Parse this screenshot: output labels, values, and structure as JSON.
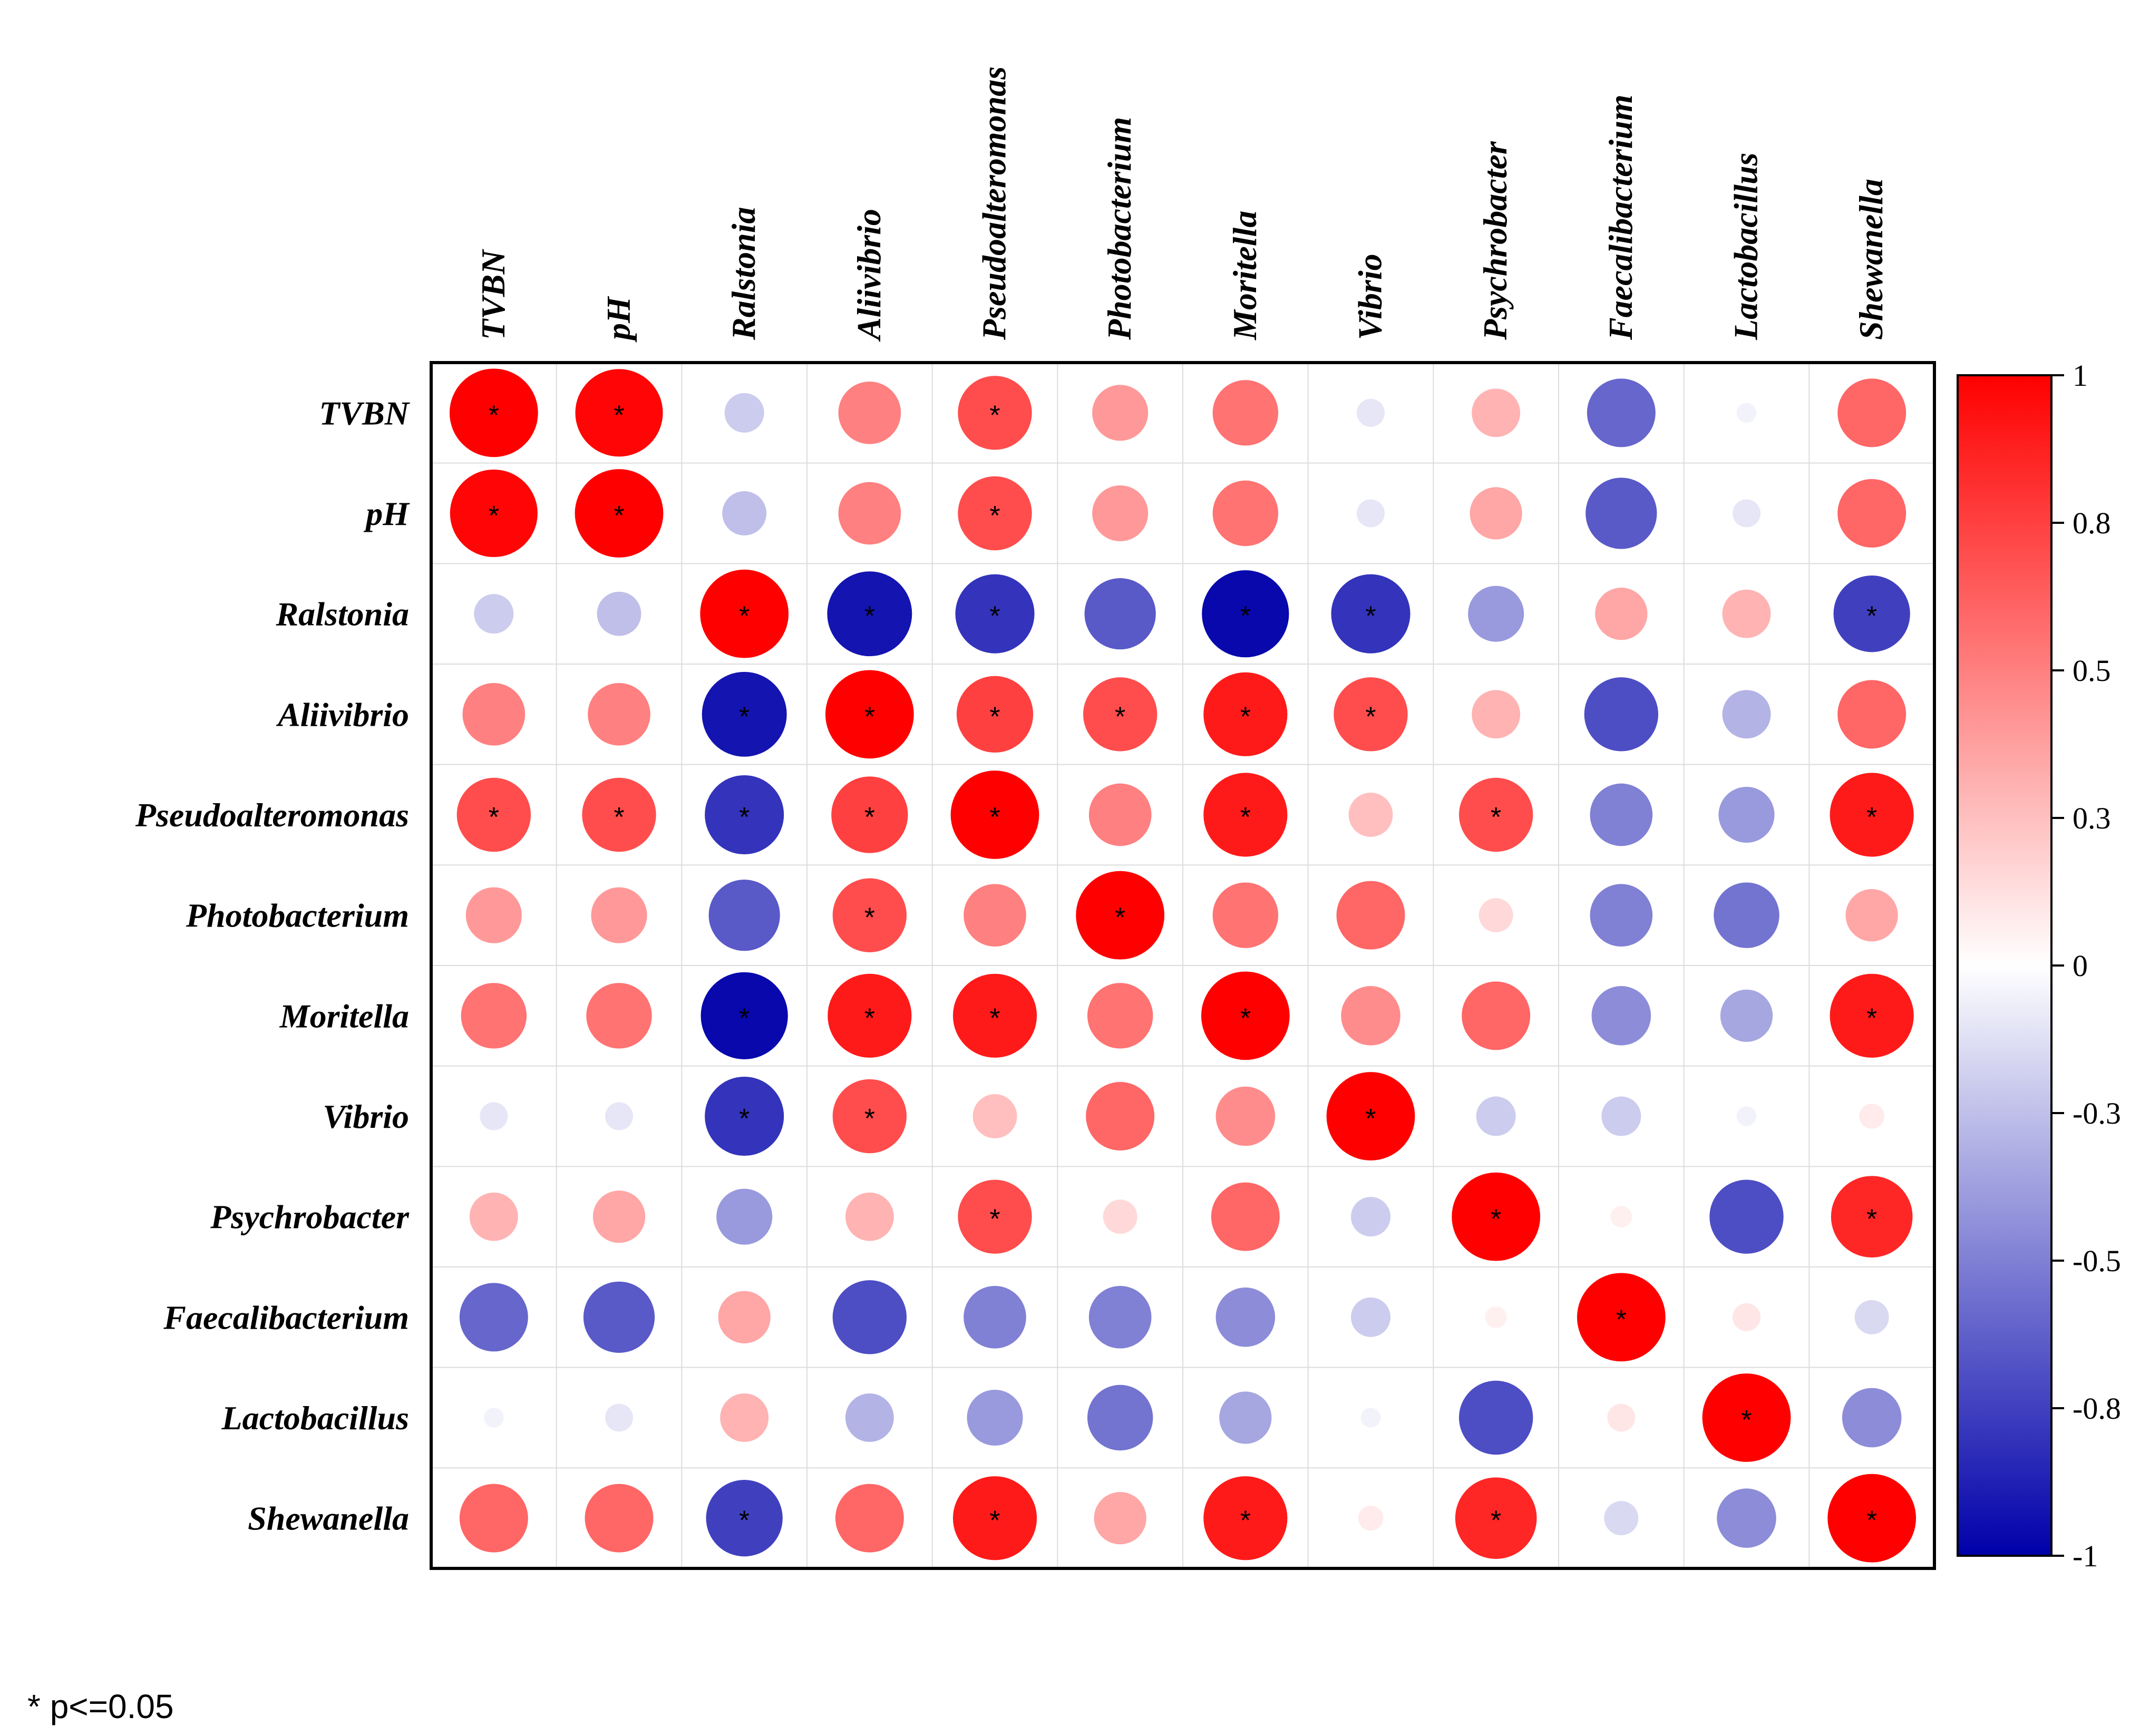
{
  "chart_data": {
    "type": "correlation-heatmap",
    "variables": [
      "TVBN",
      "pH",
      "Ralstonia",
      "Aliivibrio",
      "Pseudoalteromonas",
      "Photobacterium",
      "Moritella",
      "Vibrio",
      "Psychrobacter",
      "Faecalibacterium",
      "Lactobacillus",
      "Shewanella"
    ],
    "matrix": [
      [
        1.0,
        0.98,
        -0.2,
        0.5,
        0.7,
        0.4,
        0.55,
        -0.1,
        0.3,
        -0.6,
        -0.05,
        0.6
      ],
      [
        0.98,
        1.0,
        -0.25,
        0.5,
        0.7,
        0.4,
        0.55,
        -0.1,
        0.35,
        -0.65,
        -0.1,
        0.6
      ],
      [
        -0.2,
        -0.25,
        1.0,
        -0.92,
        -0.8,
        -0.65,
        -0.97,
        -0.8,
        -0.4,
        0.35,
        0.3,
        -0.75
      ],
      [
        0.5,
        0.5,
        -0.92,
        1.0,
        0.75,
        0.7,
        0.9,
        0.7,
        0.3,
        -0.7,
        -0.3,
        0.6
      ],
      [
        0.7,
        0.7,
        -0.8,
        0.75,
        1.0,
        0.5,
        0.9,
        0.25,
        0.7,
        -0.5,
        -0.4,
        0.9
      ],
      [
        0.4,
        0.4,
        -0.65,
        0.7,
        0.5,
        1.0,
        0.55,
        0.6,
        0.15,
        -0.5,
        -0.55,
        0.35
      ],
      [
        0.55,
        0.55,
        -0.97,
        0.9,
        0.9,
        0.55,
        1.0,
        0.45,
        0.6,
        -0.45,
        -0.35,
        0.9
      ],
      [
        -0.1,
        -0.1,
        -0.8,
        0.7,
        0.25,
        0.6,
        0.45,
        1.0,
        -0.2,
        -0.2,
        -0.05,
        0.08
      ],
      [
        0.3,
        0.35,
        -0.4,
        0.3,
        0.7,
        0.15,
        0.6,
        -0.2,
        1.0,
        0.06,
        -0.7,
        0.85
      ],
      [
        -0.6,
        -0.65,
        0.35,
        -0.7,
        -0.5,
        -0.5,
        -0.45,
        -0.2,
        0.06,
        1.0,
        0.1,
        -0.15
      ],
      [
        -0.05,
        -0.1,
        0.3,
        -0.3,
        -0.4,
        -0.55,
        -0.35,
        -0.05,
        -0.7,
        0.1,
        1.0,
        -0.45
      ],
      [
        0.6,
        0.6,
        -0.75,
        0.6,
        0.9,
        0.35,
        0.9,
        0.08,
        0.85,
        -0.15,
        -0.45,
        1.0
      ]
    ],
    "significant": [
      [
        1,
        1,
        0,
        0,
        1,
        0,
        0,
        0,
        0,
        0,
        0,
        0
      ],
      [
        1,
        1,
        0,
        0,
        1,
        0,
        0,
        0,
        0,
        0,
        0,
        0
      ],
      [
        0,
        0,
        1,
        1,
        1,
        0,
        1,
        1,
        0,
        0,
        0,
        1
      ],
      [
        0,
        0,
        1,
        1,
        1,
        1,
        1,
        1,
        0,
        0,
        0,
        0
      ],
      [
        1,
        1,
        1,
        1,
        1,
        0,
        1,
        0,
        1,
        0,
        0,
        1
      ],
      [
        0,
        0,
        0,
        1,
        0,
        1,
        0,
        0,
        0,
        0,
        0,
        0
      ],
      [
        0,
        0,
        1,
        1,
        1,
        0,
        1,
        0,
        0,
        0,
        0,
        1
      ],
      [
        0,
        0,
        1,
        1,
        0,
        0,
        0,
        1,
        0,
        0,
        0,
        0
      ],
      [
        0,
        0,
        0,
        0,
        1,
        0,
        0,
        0,
        1,
        0,
        0,
        1
      ],
      [
        0,
        0,
        0,
        0,
        0,
        0,
        0,
        0,
        0,
        1,
        0,
        0
      ],
      [
        0,
        0,
        0,
        0,
        0,
        0,
        0,
        0,
        0,
        0,
        1,
        0
      ],
      [
        0,
        0,
        1,
        0,
        1,
        0,
        1,
        0,
        1,
        0,
        0,
        1
      ]
    ],
    "star_symbol": "*",
    "colorbar": {
      "min": -1,
      "max": 1,
      "tick_values": [
        1,
        0.75,
        0.5,
        0.25,
        0,
        -0.25,
        -0.5,
        -0.75,
        -1
      ],
      "tick_labels": [
        "1",
        "0.8",
        "0.5",
        "0.3",
        "0",
        "-0.3",
        "-0.5",
        "-0.8",
        "-1"
      ],
      "colors": {
        "positive": "#FF0000",
        "zero": "#FFFFFF",
        "negative": "#0000AA"
      }
    },
    "footnote": "* p<=0.05"
  }
}
